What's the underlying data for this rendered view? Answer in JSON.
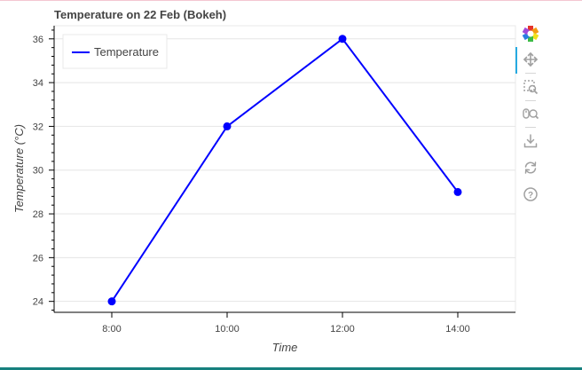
{
  "chart_data": {
    "type": "line",
    "title": "Temperature on 22 Feb (Bokeh)",
    "xlabel": "Time",
    "ylabel": "Temperature (°C)",
    "x": [
      "8:00",
      "10:00",
      "12:00",
      "14:00"
    ],
    "x_hours": [
      8,
      10,
      12,
      14
    ],
    "xlim_hours": [
      7,
      15
    ],
    "ylim": [
      23.5,
      36.6
    ],
    "yticks": [
      24,
      26,
      28,
      30,
      32,
      34,
      36
    ],
    "series": [
      {
        "name": "Temperature",
        "values": [
          24,
          32,
          36,
          29
        ],
        "color": "#0000ff"
      }
    ],
    "legend": {
      "position": "top-left",
      "entries": [
        "Temperature"
      ]
    },
    "grid": true
  },
  "toolbar": {
    "tools": [
      "bokeh-logo-icon",
      "pan-icon",
      "box-zoom-icon",
      "wheel-zoom-icon",
      "save-icon",
      "reset-icon",
      "help-icon"
    ]
  }
}
